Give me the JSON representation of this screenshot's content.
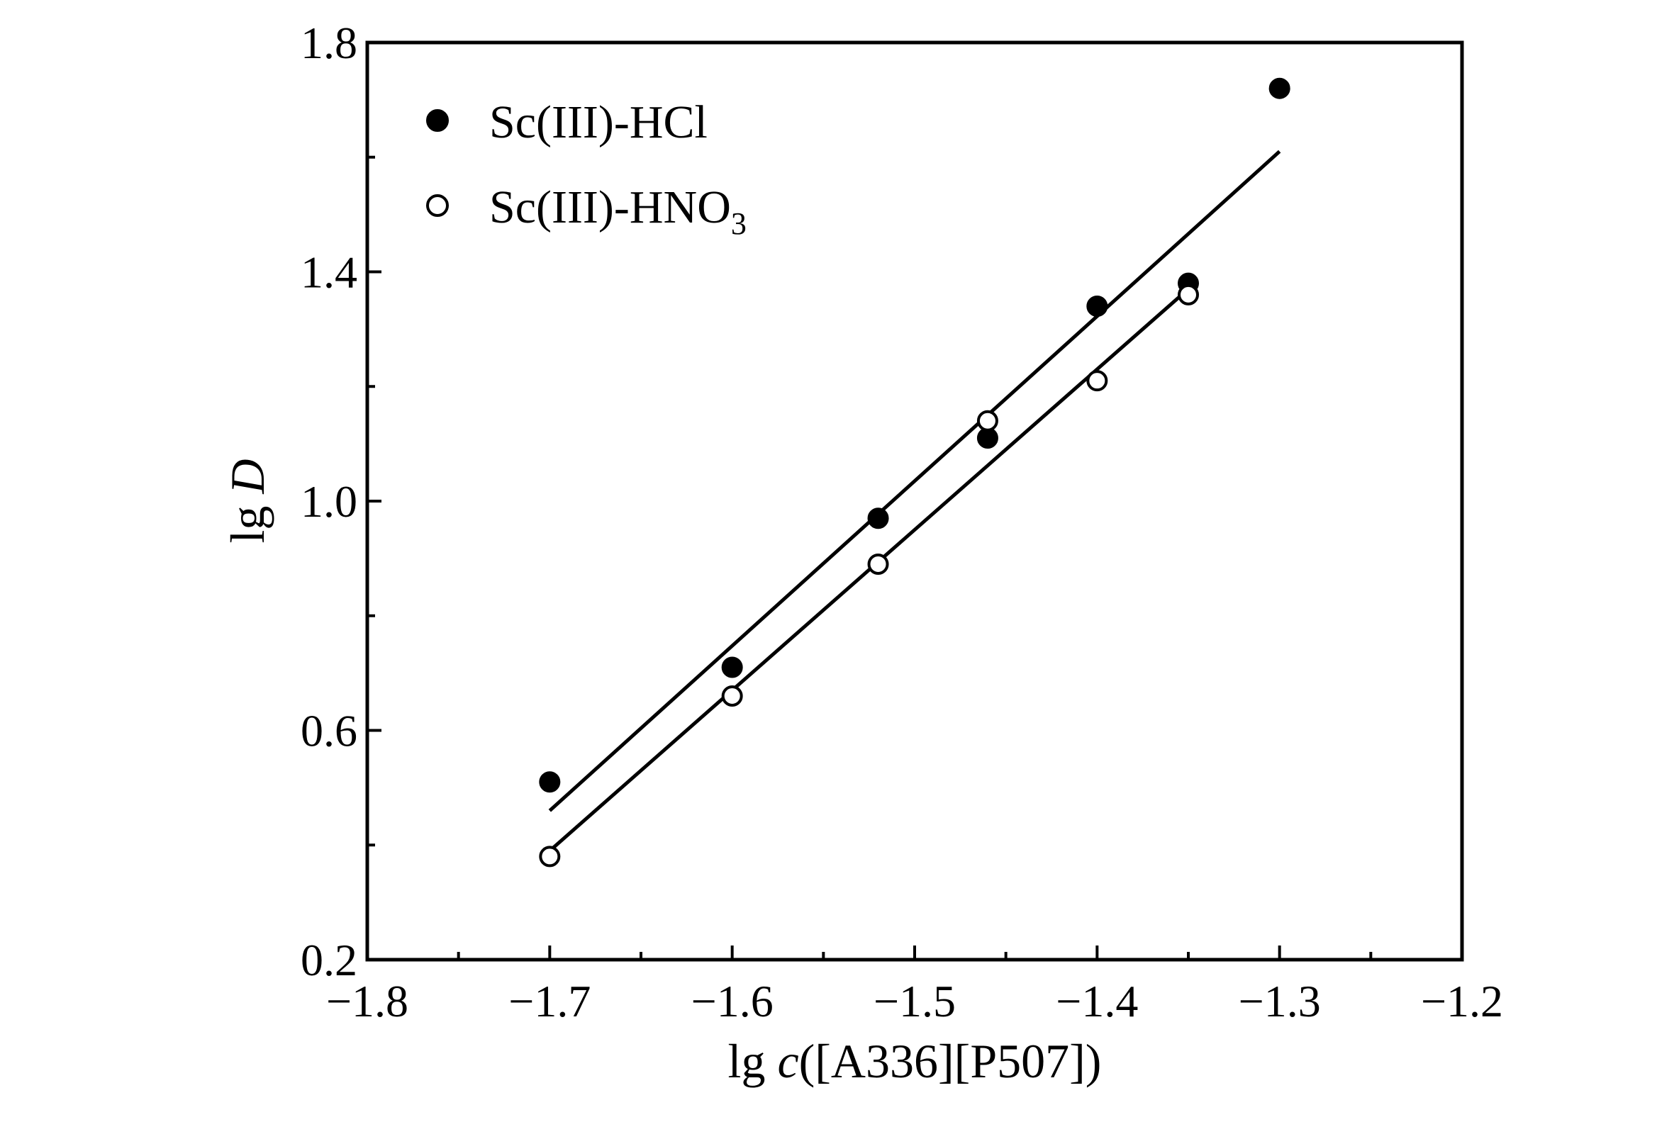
{
  "chart_data": {
    "type": "scatter",
    "xlabel_prefix": "lg ",
    "xlabel_italic": "c",
    "xlabel_suffix": "([A336][P507])",
    "ylabel_prefix": "lg ",
    "ylabel_italic": "D",
    "xlim": [
      -1.8,
      -1.2
    ],
    "ylim": [
      0.2,
      1.8
    ],
    "xticks": [
      -1.8,
      -1.7,
      -1.6,
      -1.5,
      -1.4,
      -1.3,
      -1.2
    ],
    "xtick_labels": [
      "−1.8",
      "−1.7",
      "−1.6",
      "−1.5",
      "−1.4",
      "−1.3",
      "−1.2"
    ],
    "yticks": [
      0.2,
      0.6,
      1.0,
      1.4,
      1.8
    ],
    "ytick_labels": [
      "0.2",
      "0.6",
      "1.0",
      "1.4",
      "1.8"
    ],
    "legend_position": "top-left",
    "grid": false,
    "series": [
      {
        "name": "Sc(III)-HCl",
        "marker": "filled-circle",
        "x": [
          -1.7,
          -1.6,
          -1.52,
          -1.46,
          -1.4,
          -1.35,
          -1.3
        ],
        "y": [
          0.51,
          0.71,
          0.97,
          1.11,
          1.34,
          1.38,
          1.72
        ],
        "fit": {
          "x": [
            -1.7,
            -1.3
          ],
          "y": [
            0.46,
            1.61
          ]
        }
      },
      {
        "name": "Sc(III)-HNO",
        "name_subscript": "3",
        "marker": "open-circle",
        "x": [
          -1.7,
          -1.6,
          -1.52,
          -1.46,
          -1.4,
          -1.35
        ],
        "y": [
          0.38,
          0.66,
          0.89,
          1.14,
          1.21,
          1.36
        ],
        "fit": {
          "x": [
            -1.7,
            -1.35
          ],
          "y": [
            0.39,
            1.37
          ]
        }
      }
    ]
  }
}
